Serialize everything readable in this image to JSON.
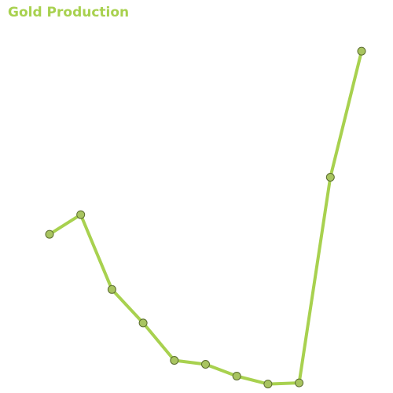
{
  "chart_data": {
    "type": "line",
    "title": "Gold Production",
    "xlabel": "",
    "ylabel": "",
    "grid": false,
    "legend": "none",
    "x": [
      1,
      2,
      3,
      4,
      5,
      6,
      7,
      8,
      9,
      10,
      11
    ],
    "ylim": [
      0,
      110
    ],
    "series": [
      {
        "values": [
          50.5,
          55.5,
          36.5,
          28,
          18.5,
          17.5,
          14.5,
          12.5,
          12.8,
          65,
          97
        ],
        "color": "#a8d14f",
        "marker_fill": "#a8c460",
        "marker_edge": "#5a6b2e"
      }
    ]
  },
  "colors": {
    "accent": "#a8d14f"
  }
}
